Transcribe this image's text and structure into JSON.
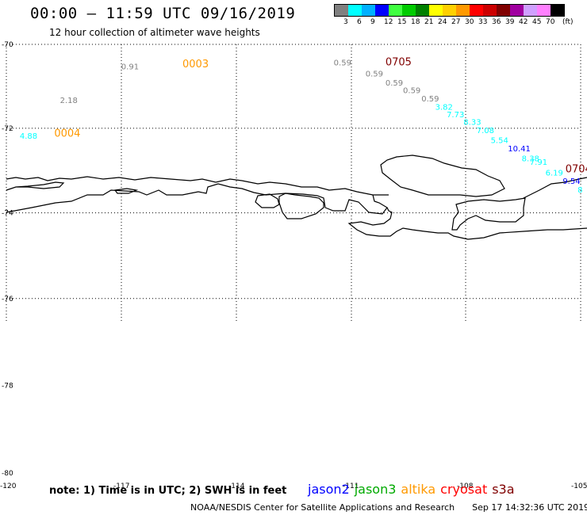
{
  "header": {
    "title": "00:00 – 11:59 UTC 09/16/2019",
    "subtitle": "12 hour collection of altimeter wave heights"
  },
  "legend": {
    "unit": "(ft)",
    "entries": [
      {
        "label": "3",
        "color": "#808080"
      },
      {
        "label": "6",
        "color": "#00ffff"
      },
      {
        "label": "9",
        "color": "#00b0ff"
      },
      {
        "label": "12",
        "color": "#0000ff"
      },
      {
        "label": "15",
        "color": "#40ff40"
      },
      {
        "label": "18",
        "color": "#00cc00"
      },
      {
        "label": "21",
        "color": "#008000"
      },
      {
        "label": "24",
        "color": "#ffff00"
      },
      {
        "label": "27",
        "color": "#ffd000"
      },
      {
        "label": "30",
        "color": "#ff9900"
      },
      {
        "label": "33",
        "color": "#ff0000"
      },
      {
        "label": "36",
        "color": "#cc0000"
      },
      {
        "label": "39",
        "color": "#800000"
      },
      {
        "label": "42",
        "color": "#a000a0"
      },
      {
        "label": "45",
        "color": "#d0a0ff"
      },
      {
        "label": "70",
        "color": "#ff80ff"
      },
      {
        "label": "",
        "color": "#000000"
      }
    ]
  },
  "map": {
    "lat_labels": [
      {
        "label": "-70",
        "value": -70
      },
      {
        "label": "-72",
        "value": -72
      },
      {
        "label": "-74",
        "value": -74
      },
      {
        "label": "-76",
        "value": -76
      },
      {
        "label": "-78",
        "value": -78
      },
      {
        "label": "-80",
        "value": -80
      }
    ],
    "lon_labels": [
      {
        "label": "-120",
        "value": -120
      },
      {
        "label": "-117",
        "value": -117
      },
      {
        "label": "-114",
        "value": -114
      },
      {
        "label": "-111",
        "value": -111
      },
      {
        "label": "-108",
        "value": -108
      },
      {
        "label": "-105",
        "value": -105
      }
    ],
    "time_labels": [
      {
        "text": "0003",
        "color": "#ff9900",
        "lon": -115.4,
        "lat": -70.55
      },
      {
        "text": "0004",
        "color": "#ff9900",
        "lon": -118.75,
        "lat": -72.2
      },
      {
        "text": "0705",
        "color": "#800000",
        "lon": -110.1,
        "lat": -70.5
      },
      {
        "text": "0704",
        "color": "#800000",
        "lon": -105.4,
        "lat": -73.05
      }
    ],
    "swh_values": [
      {
        "text": "0.91",
        "color": "#808080",
        "lon": -117.0,
        "lat": -70.6
      },
      {
        "text": "2.18",
        "color": "#808080",
        "lon": -118.6,
        "lat": -71.4
      },
      {
        "text": "4.88",
        "color": "#00ffff",
        "lon": -119.65,
        "lat": -72.25
      },
      {
        "text": "0.59",
        "color": "#808080",
        "lon": -111.45,
        "lat": -70.5
      },
      {
        "text": "0.59",
        "color": "#808080",
        "lon": -110.62,
        "lat": -70.77
      },
      {
        "text": "0.59",
        "color": "#808080",
        "lon": -110.1,
        "lat": -70.98
      },
      {
        "text": "0.59",
        "color": "#808080",
        "lon": -109.64,
        "lat": -71.16
      },
      {
        "text": "0.59",
        "color": "#808080",
        "lon": -109.16,
        "lat": -71.36
      },
      {
        "text": "3.82",
        "color": "#00ffff",
        "lon": -108.8,
        "lat": -71.56
      },
      {
        "text": "7.73",
        "color": "#00ffff",
        "lon": -108.5,
        "lat": -71.74
      },
      {
        "text": "8.33",
        "color": "#00ffff",
        "lon": -108.06,
        "lat": -71.92
      },
      {
        "text": "7.08",
        "color": "#00ffff",
        "lon": -107.72,
        "lat": -72.12
      },
      {
        "text": "5.54",
        "color": "#00ffff",
        "lon": -107.35,
        "lat": -72.35
      },
      {
        "text": "10.41",
        "color": "#0000ff",
        "lon": -106.9,
        "lat": -72.55
      },
      {
        "text": "8.38",
        "color": "#00ffff",
        "lon": -106.54,
        "lat": -72.78
      },
      {
        "text": "7.91",
        "color": "#00ffff",
        "lon": -106.33,
        "lat": -72.87
      },
      {
        "text": "6.19",
        "color": "#00ffff",
        "lon": -105.92,
        "lat": -73.12
      },
      {
        "text": "9.54",
        "color": "#0000ff",
        "lon": -105.47,
        "lat": -73.32
      },
      {
        "text": "8",
        "color": "#00ffff",
        "lon": -105.08,
        "lat": -73.52
      }
    ]
  },
  "note": "note: 1) Time is in UTC; 2) SWH is in feet",
  "satellites": [
    {
      "name": "jason2",
      "color": "#0000ff"
    },
    {
      "name": "jason3",
      "color": "#00aa00"
    },
    {
      "name": "altika",
      "color": "#ff9900"
    },
    {
      "name": "cryosat",
      "color": "#ff0000"
    },
    {
      "name": "s3a",
      "color": "#800000"
    }
  ],
  "footer": {
    "credit": "NOAA/NESDIS Center for Satellite Applications and Research",
    "timestamp": "Sep 17 14:32:36 UTC 2019"
  }
}
